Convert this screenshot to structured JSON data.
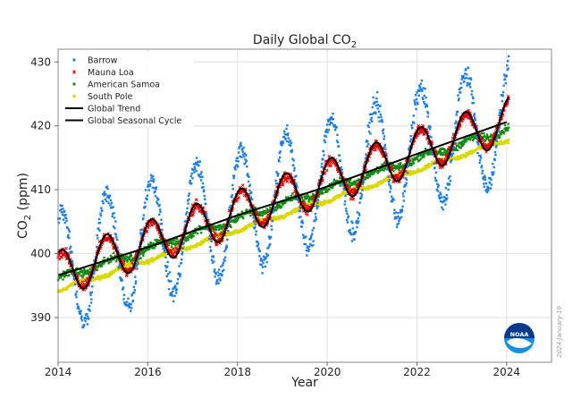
{
  "chart_data": {
    "type": "scatter",
    "title": "Daily Global CO",
    "title_sub": "2",
    "xlabel": "Year",
    "ylabel_pre": "CO",
    "ylabel_sub": "2",
    "ylabel_post": " (ppm)",
    "xlim": [
      2014,
      2025
    ],
    "ylim": [
      383,
      432
    ],
    "x_ticks": [
      2014,
      2016,
      2018,
      2020,
      2022,
      2024
    ],
    "x_tick_labels": [
      "2014",
      "2016",
      "2018",
      "2020",
      "2022",
      "2024"
    ],
    "y_ticks": [
      390,
      400,
      410,
      420,
      430
    ],
    "y_tick_labels": [
      "390",
      "400",
      "410",
      "420",
      "430"
    ],
    "grid": true,
    "legend_position": "top-left",
    "date_stamp": "2024-January-19",
    "x_range": [
      2014.0,
      2024.05
    ],
    "series": [
      {
        "name": "Barrow",
        "kind": "points",
        "marker": "square",
        "color": "#1f7fe0",
        "trend_start": 397.3,
        "trend_slope": 2.35,
        "seasonal_amplitude": 9.5,
        "seasonal_phase": 0.08,
        "scatter": 1.3
      },
      {
        "name": "Mauna Loa",
        "kind": "points",
        "marker": "x",
        "color": "#e00000",
        "trend_start": 396.8,
        "trend_slope": 2.4,
        "seasonal_amplitude": 3.2,
        "seasonal_phase": 0.08,
        "scatter": 0.7
      },
      {
        "name": "American Samoa",
        "kind": "points",
        "marker": "square",
        "color": "#138a13",
        "trend_start": 396.0,
        "trend_slope": 2.35,
        "seasonal_amplitude": 0.5,
        "seasonal_phase": 0.2,
        "scatter": 0.5
      },
      {
        "name": "South Pole",
        "kind": "points",
        "marker": "circle",
        "color": "#d9d900",
        "trend_start": 394.3,
        "trend_slope": 2.35,
        "seasonal_amplitude": 0.3,
        "seasonal_phase": 0.5,
        "scatter": 0.25
      },
      {
        "name": "Global Trend",
        "kind": "line",
        "color": "#000000",
        "x": [
          2014.0,
          2016.0,
          2018.0,
          2020.0,
          2022.0,
          2024.0
        ],
        "y": [
          396.6,
          401.0,
          406.0,
          410.5,
          415.6,
          420.6
        ]
      },
      {
        "name": "Global Seasonal Cycle",
        "kind": "line",
        "color": "#000000",
        "trend_start": 396.8,
        "trend_slope": 2.4,
        "seasonal_amplitude": 3.6,
        "seasonal_phase": 0.08
      }
    ]
  },
  "logo": {
    "name": "noaa-logo",
    "text": "NOAA",
    "colors": [
      "#0a3a8c",
      "#1a8fe0"
    ]
  }
}
